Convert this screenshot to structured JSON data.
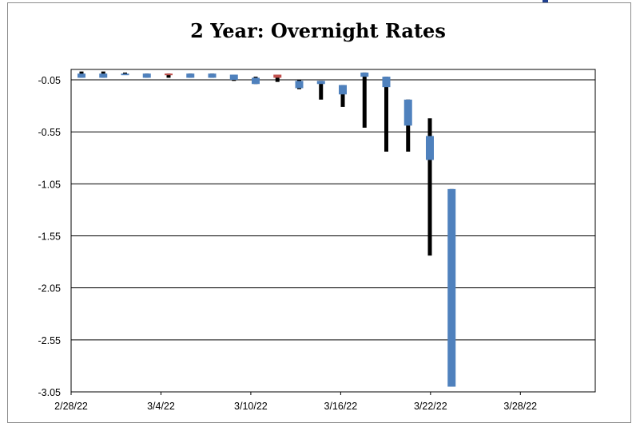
{
  "chart_data": {
    "type": "candlestick",
    "title": "2 Year:  Overnight Rates",
    "xlabel": "",
    "ylabel": "",
    "ylim": [
      -3.05,
      0.05
    ],
    "y_ticks": [
      "-0.05",
      "-0.55",
      "-1.05",
      "-1.55",
      "-2.05",
      "-2.55",
      "-3.05"
    ],
    "y_tick_values": [
      -0.05,
      -0.55,
      -1.05,
      -1.55,
      -2.05,
      -2.55,
      -3.05
    ],
    "x_ticks": [
      "2/28/22",
      "3/4/22",
      "3/10/22",
      "3/16/22",
      "3/22/22",
      "3/28/22"
    ],
    "x_tick_offsets": [
      0,
      6,
      12,
      18,
      24,
      30
    ],
    "x_range_days": [
      0,
      35
    ],
    "grid": true,
    "colors": {
      "up": "#4f81bd",
      "down": "#c0504d",
      "wick": "#000000",
      "grid": "#000000"
    },
    "candles": [
      {
        "date": "2/28/22",
        "open": 0.01,
        "close": -0.03,
        "high": 0.03,
        "low": -0.03
      },
      {
        "date": "3/1/22",
        "open": 0.01,
        "close": -0.03,
        "high": 0.03,
        "low": -0.03
      },
      {
        "date": "3/2/22",
        "open": 0.01,
        "close": 0.0,
        "high": 0.02,
        "low": 0.0
      },
      {
        "date": "3/3/22",
        "open": 0.01,
        "close": -0.03,
        "high": 0.01,
        "low": -0.03
      },
      {
        "date": "3/4/22",
        "open": 0.0,
        "close": 0.01,
        "high": 0.01,
        "low": -0.03
      },
      {
        "date": "3/7/22",
        "open": 0.01,
        "close": -0.03,
        "high": 0.01,
        "low": -0.03
      },
      {
        "date": "3/8/22",
        "open": 0.01,
        "close": -0.03,
        "high": 0.01,
        "low": -0.03
      },
      {
        "date": "3/9/22",
        "open": 0.0,
        "close": -0.05,
        "high": 0.0,
        "low": -0.06
      },
      {
        "date": "3/10/22",
        "open": -0.03,
        "close": -0.09,
        "high": -0.02,
        "low": -0.09
      },
      {
        "date": "3/11/22",
        "open": -0.03,
        "close": 0.0,
        "high": 0.0,
        "low": -0.07
      },
      {
        "date": "3/14/22",
        "open": -0.06,
        "close": -0.13,
        "high": -0.05,
        "low": -0.14
      },
      {
        "date": "3/15/22",
        "open": -0.06,
        "close": -0.09,
        "high": -0.06,
        "low": -0.24
      },
      {
        "date": "3/16/22",
        "open": -0.1,
        "close": -0.19,
        "high": -0.1,
        "low": -0.31
      },
      {
        "date": "3/17/22",
        "open": 0.02,
        "close": -0.02,
        "high": 0.02,
        "low": -0.51
      },
      {
        "date": "3/18/22",
        "open": -0.02,
        "close": -0.12,
        "high": -0.02,
        "low": -0.74
      },
      {
        "date": "3/21/22",
        "open": -0.24,
        "close": -0.49,
        "high": -0.24,
        "low": -0.74
      },
      {
        "date": "3/22/22",
        "open": -0.59,
        "close": -0.82,
        "high": -0.42,
        "low": -1.74
      },
      {
        "date": "3/23/22",
        "open": -1.1,
        "close": -3.0,
        "high": -1.1,
        "low": -3.0
      }
    ]
  }
}
